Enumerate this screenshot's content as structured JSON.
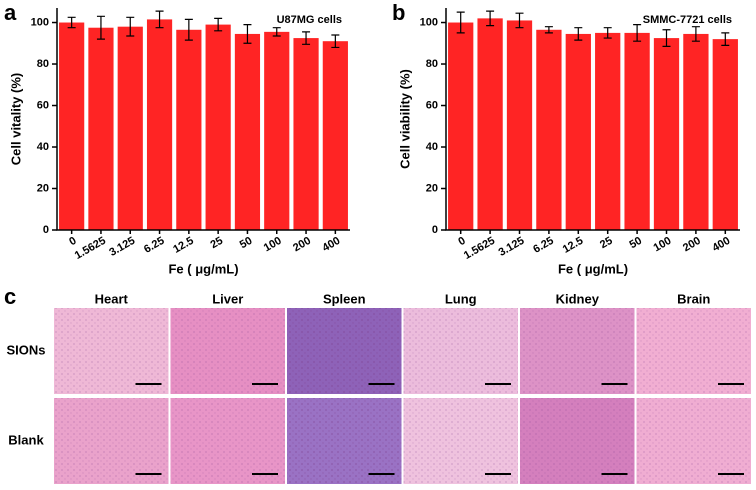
{
  "chart_data": [
    {
      "type": "bar",
      "panel_label": "a",
      "annotation": "U87MG cells",
      "x_label": "Fe ( μg/mL)",
      "y_label": "Cell vitality (%)",
      "categories": [
        "0",
        "1.5625",
        "3.125",
        "6.25",
        "12.5",
        "25",
        "50",
        "100",
        "200",
        "400"
      ],
      "values": [
        100,
        97.5,
        98,
        101.5,
        96.5,
        99,
        94.5,
        95.5,
        92.5,
        91
      ],
      "errors": [
        2.5,
        5.5,
        4.5,
        4,
        5,
        3,
        4.5,
        2,
        3,
        3
      ],
      "color": "#ff2424",
      "ylim": [
        0,
        107
      ],
      "yticks": [
        0,
        20,
        40,
        60,
        80,
        100
      ]
    },
    {
      "type": "bar",
      "panel_label": "b",
      "annotation": "SMMC-7721 cells",
      "x_label": "Fe ( μg/mL)",
      "y_label": "Cell viability (%)",
      "categories": [
        "0",
        "1.5625",
        "3.125",
        "6.25",
        "12.5",
        "25",
        "50",
        "100",
        "200",
        "400"
      ],
      "values": [
        100,
        102,
        101,
        96.5,
        94.5,
        95,
        95,
        92.5,
        94.5,
        92
      ],
      "errors": [
        5,
        3.5,
        3.5,
        1.5,
        3,
        2.5,
        4,
        4,
        3.5,
        3
      ],
      "color": "#ff2424",
      "ylim": [
        0,
        107
      ],
      "yticks": [
        0,
        20,
        40,
        60,
        80,
        100
      ]
    }
  ],
  "panel_c": {
    "panel_label": "c",
    "columns": [
      "Heart",
      "Liver",
      "Spleen",
      "Lung",
      "Kidney",
      "Brain"
    ],
    "rows": [
      "SIONs",
      "Blank"
    ]
  }
}
